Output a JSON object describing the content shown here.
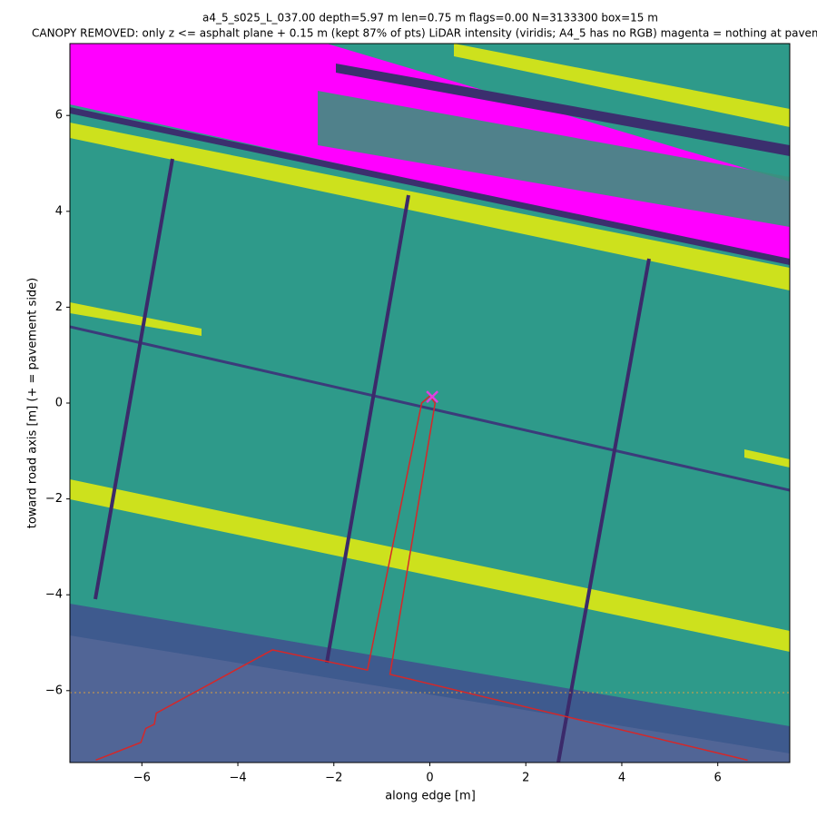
{
  "chart_data": {
    "type": "image",
    "title": "a4_5_s025_L_037.00  depth=5.97 m  len=0.75 m  flags=0.00  N=3133300  box=15 m",
    "subtitle": "CANOPY REMOVED: only z <= asphalt plane + 0.15 m  (kept 87% of pts)   LiDAR intensity (viridis; A4_5 has no RGB)   magenta = nothing at paveme",
    "xlabel": "along edge [m]",
    "ylabel": "toward road axis [m]  (+ = pavement side)",
    "xlim": [
      -7.5,
      7.5
    ],
    "ylim": [
      -7.5,
      7.5
    ],
    "xticks": [
      {
        "value": -6,
        "label": "−6"
      },
      {
        "value": -4,
        "label": "−4"
      },
      {
        "value": -2,
        "label": "−2"
      },
      0,
      2,
      4,
      6
    ],
    "yticks": [
      {
        "value": -6,
        "label": "−6"
      },
      {
        "value": -4,
        "label": "−4"
      },
      {
        "value": -2,
        "label": "−2"
      },
      0,
      2,
      4,
      6
    ],
    "series": [
      {
        "color": "#d62728",
        "x": [
          -6.96,
          -6.02,
          -5.92,
          -5.74,
          -5.7,
          -3.28,
          -1.3,
          -0.17,
          0.0,
          0.11,
          -0.83,
          6.62
        ],
        "values": [
          -7.45,
          -7.08,
          -6.79,
          -6.7,
          -6.47,
          -5.15,
          -5.57,
          0.0,
          0.15,
          0.0,
          -5.66,
          -7.45
        ]
      }
    ],
    "marker": {
      "x": 0.05,
      "y": 0.13,
      "color": "#e040e0"
    }
  }
}
